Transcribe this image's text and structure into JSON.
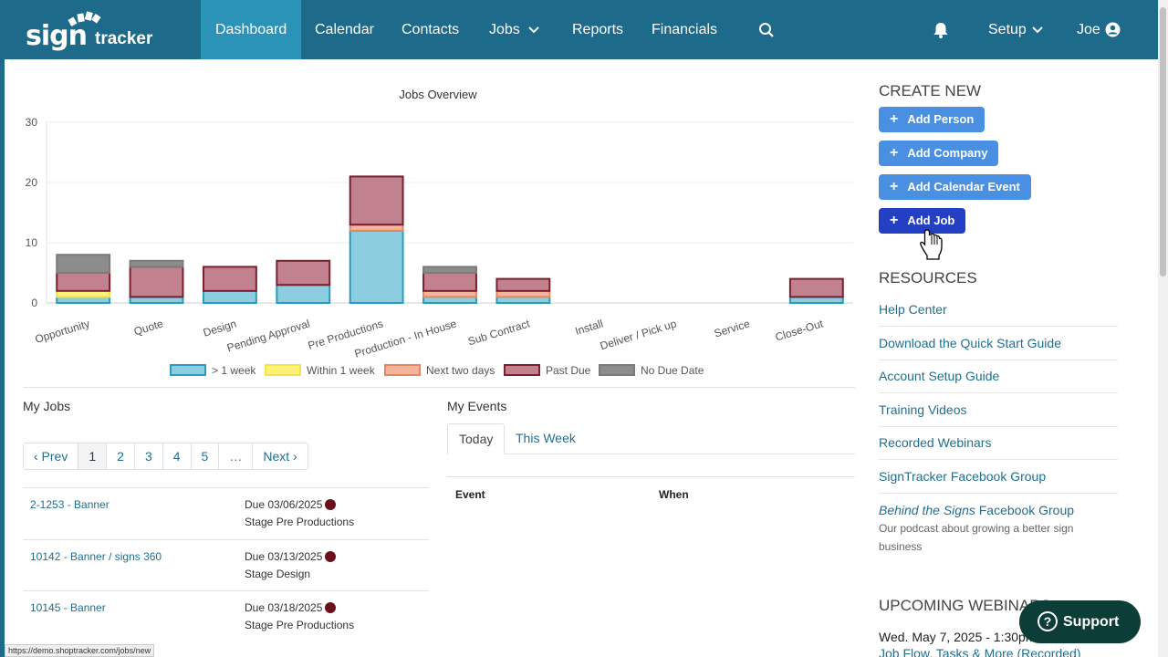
{
  "nav": {
    "logo_sign": "sign",
    "logo_tracker": "tracker",
    "items": [
      {
        "label": "Dashboard",
        "active": true
      },
      {
        "label": "Calendar"
      },
      {
        "label": "Contacts"
      },
      {
        "label": "Jobs"
      },
      {
        "label": "Reports"
      },
      {
        "label": "Financials"
      }
    ],
    "setup": "Setup",
    "user": "Joe"
  },
  "chart_data": {
    "type": "bar",
    "stacked": true,
    "title": "Jobs Overview",
    "categories": [
      "Opportunity",
      "Quote",
      "Design",
      "Pending Approval",
      "Pre Productions",
      "Production - In House",
      "Sub Contract",
      "Install",
      "Deliver / Pick up",
      "Service",
      "Close-Out"
    ],
    "ylim": [
      0,
      30
    ],
    "yticks": [
      "0",
      "10",
      "20",
      "30"
    ],
    "series": [
      {
        "name": "> 1 week",
        "color": "#8ccde0",
        "border": "#2b9cc0",
        "values": [
          1,
          1,
          2,
          3,
          12,
          1,
          1,
          0,
          0,
          0,
          1
        ]
      },
      {
        "name": "Within 1 week",
        "color": "#fff176",
        "border": "#f2e44c",
        "values": [
          1,
          0,
          0,
          0,
          0,
          0,
          0,
          0,
          0,
          0,
          0
        ]
      },
      {
        "name": "Next two days",
        "color": "#f2b49a",
        "border": "#e5875f",
        "values": [
          0,
          0,
          0,
          0,
          1,
          1,
          1,
          0,
          0,
          0,
          0
        ]
      },
      {
        "name": "Past Due",
        "color": "#c1818f",
        "border": "#7b1f2e",
        "values": [
          3,
          5,
          4,
          4,
          8,
          3,
          2,
          0,
          0,
          0,
          3
        ]
      },
      {
        "name": "No Due Date",
        "color": "#8c8c8c",
        "border": "#7a7a7a",
        "values": [
          3,
          1,
          0,
          0,
          0,
          1,
          0,
          0,
          0,
          0,
          0
        ]
      }
    ],
    "grid": true,
    "legend": "bottom"
  },
  "my_jobs": {
    "title": "My Jobs",
    "pagination": [
      "‹ Prev",
      "1",
      "2",
      "3",
      "4",
      "5",
      "…",
      "Next ›"
    ],
    "jobs": [
      {
        "name": "2-1253 - Banner",
        "due": "Due 03/06/2025",
        "stage": "Stage Pre Productions"
      },
      {
        "name": "10142 - Banner / signs 360",
        "due": "Due 03/13/2025",
        "stage": "Stage Design"
      },
      {
        "name": "10145 - Banner",
        "due": "Due 03/18/2025",
        "stage": "Stage Pre Productions"
      }
    ]
  },
  "my_events": {
    "title": "My Events",
    "tabs": [
      "Today",
      "This Week"
    ],
    "columns": [
      "Event",
      "When"
    ]
  },
  "sidebar": {
    "create_heading": "CREATE NEW",
    "buttons": [
      "Add Person",
      "Add Company",
      "Add Calendar Event",
      "Add Job"
    ],
    "resources_heading": "RESOURCES",
    "resources": [
      "Help Center",
      "Download the Quick Start Guide",
      "Account Setup Guide",
      "Training Videos",
      "Recorded Webinars",
      "SignTracker Facebook Group"
    ],
    "behind_italic": "Behind the Signs",
    "behind_rest": " Facebook Group",
    "behind_desc": "Our podcast about growing a better sign business",
    "webinars_heading": "UPCOMING WEBINARS",
    "webinar_date": "Wed. May 7, 2025 - 1:30pm",
    "webinar_title": "Job Flow, Tasks & More (Recorded)"
  },
  "support_label": "Support",
  "status_url": "https://demo.shoptracker.com/jobs/new"
}
